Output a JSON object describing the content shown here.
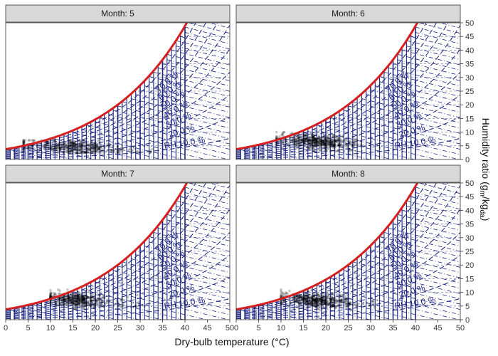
{
  "chart_data": {
    "type": "scatter",
    "subtype": "psychrometric-chart-faceted",
    "xlabel": "Dry-bulb temperature (°C)",
    "ylabel": "Humidity ratio (g",
    "ylabel_sub1": "m",
    "ylabel_mid": "/kg",
    "ylabel_sub2": "da",
    "ylabel_end": ")",
    "xlim": [
      0,
      50
    ],
    "ylim": [
      0,
      50
    ],
    "x_ticks": [
      "0",
      "5",
      "10",
      "15",
      "20",
      "25",
      "30",
      "35",
      "40",
      "45",
      "50"
    ],
    "y_ticks": [
      "0",
      "5",
      "10",
      "15",
      "20",
      "25",
      "30",
      "35",
      "40",
      "45",
      "50"
    ],
    "y_tick_values": [
      0,
      5,
      10,
      15,
      20,
      25,
      30,
      35,
      40,
      45,
      50
    ],
    "x_tick_values": [
      0,
      5,
      10,
      15,
      20,
      25,
      30,
      35,
      40,
      45,
      50
    ],
    "rh_labels": [
      "RH 10.0 %",
      "20.0 %",
      "30.0 %",
      "40.0 %",
      "50.0 %",
      "60.0 %",
      "70.0 %"
    ],
    "rh_values": [
      0.1,
      0.2,
      0.3,
      0.4,
      0.5,
      0.6,
      0.7
    ],
    "saturation_color": "#d62020",
    "grid_line_color": "#1a237e",
    "point_color": "#000000",
    "strip_bg": "#d9d9d9",
    "panels": [
      {
        "label": "Month: 5",
        "points": {
          "t_min": 4,
          "t_max": 33,
          "t_center": 15,
          "w_center": 5.5,
          "w_top": 7.0,
          "w_bottom": 2.5,
          "count": 420
        }
      },
      {
        "label": "Month: 6",
        "points": {
          "t_min": 9,
          "t_max": 32,
          "t_center": 18,
          "w_center": 7.5,
          "w_top": 10.0,
          "w_bottom": 3.0,
          "count": 520
        }
      },
      {
        "label": "Month: 7",
        "points": {
          "t_min": 10,
          "t_max": 32,
          "t_center": 16,
          "w_center": 8.0,
          "w_top": 11.0,
          "w_bottom": 3.5,
          "count": 460
        }
      },
      {
        "label": "Month: 8",
        "points": {
          "t_min": 10,
          "t_max": 32,
          "t_center": 18,
          "w_center": 8.0,
          "w_top": 11.0,
          "w_bottom": 3.5,
          "count": 500
        }
      }
    ]
  }
}
